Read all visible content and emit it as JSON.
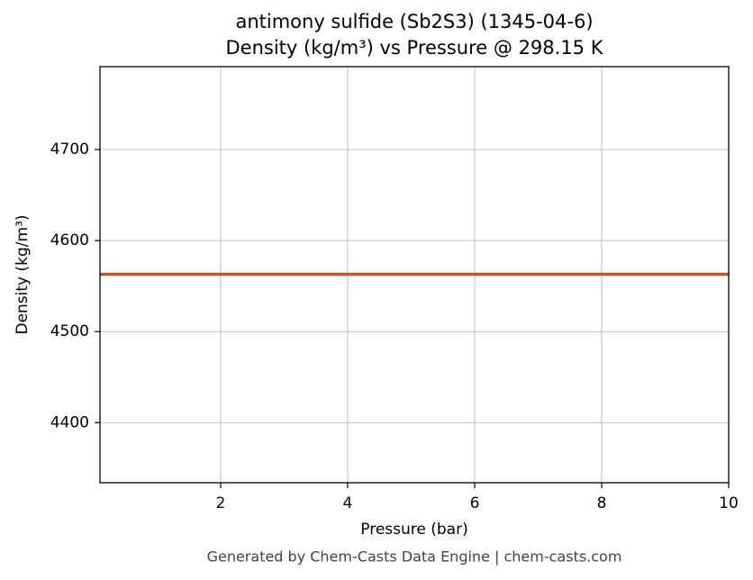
{
  "chart_data": {
    "type": "line",
    "title": "antimony sulfide (Sb2S3) (1345-04-6)",
    "subtitle": "Density (kg/m³) vs Pressure @ 298.15 K",
    "x_label": "Pressure (bar)",
    "y_label": "Density (kg/m³)",
    "footer": "Generated by Chem-Casts Data Engine | chem-casts.com",
    "x": [
      0.1,
      10
    ],
    "series": [
      {
        "name": "Density",
        "color": "#c8532a",
        "values": [
          4563,
          4563
        ]
      }
    ],
    "xlim": [
      0.1,
      10
    ],
    "xticks": [
      2,
      4,
      6,
      8,
      10
    ],
    "ylim": [
      4334,
      4791
    ],
    "yticks": [
      4400,
      4500,
      4600,
      4700
    ],
    "grid": true
  }
}
